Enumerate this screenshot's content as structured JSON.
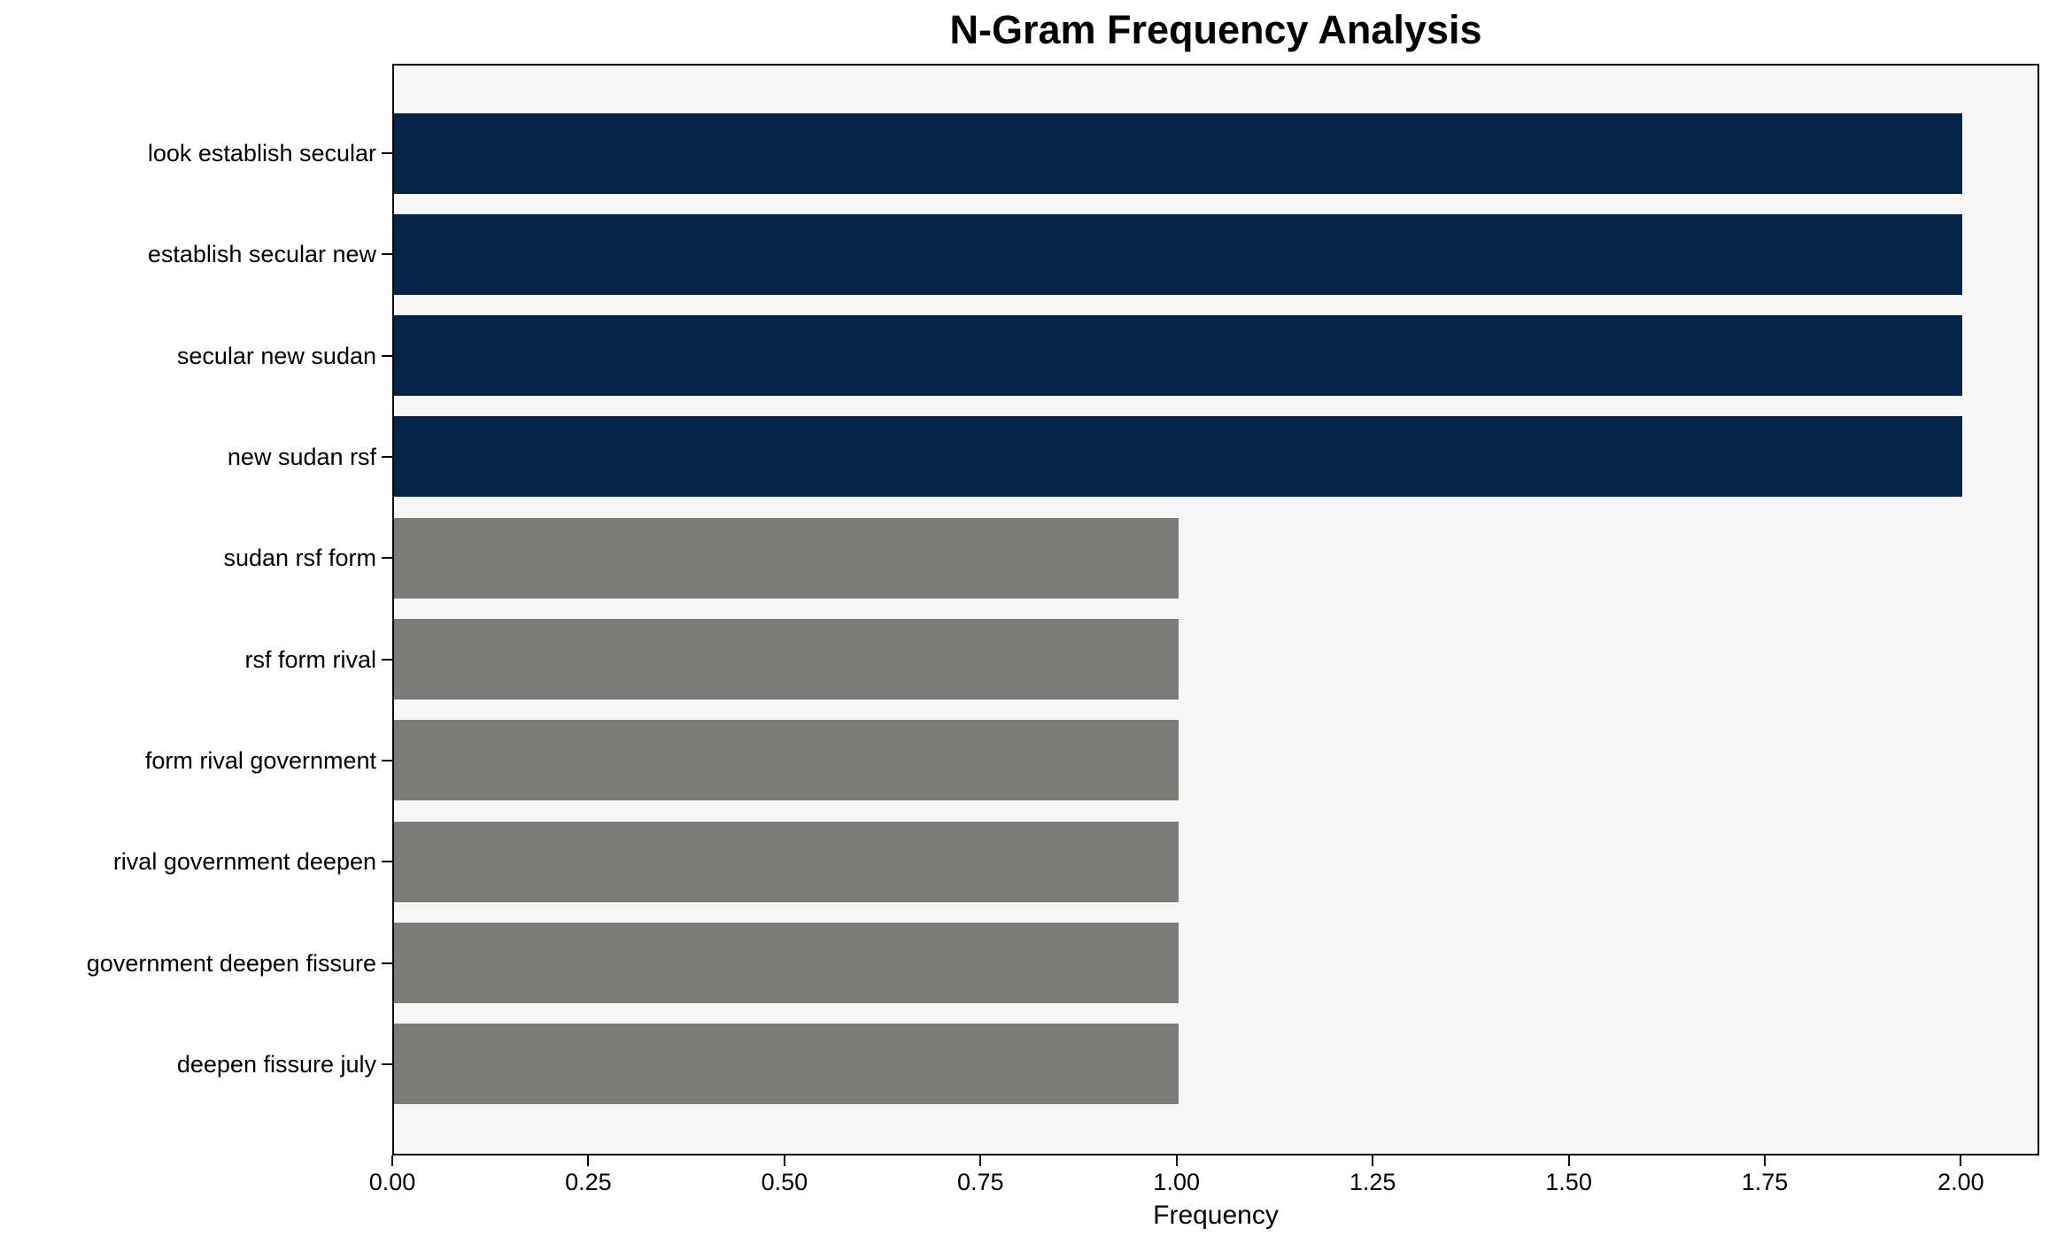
{
  "figure": {
    "background": "#ffffff"
  },
  "chart_data": {
    "type": "bar",
    "orientation": "horizontal",
    "title": "N-Gram Frequency Analysis",
    "xlabel": "Frequency",
    "ylabel": "",
    "categories": [
      "look establish secular",
      "establish secular new",
      "secular new sudan",
      "new sudan rsf",
      "sudan rsf form",
      "rsf form rival",
      "form rival government",
      "rival government deepen",
      "government deepen fissure",
      "deepen fissure july"
    ],
    "values": [
      2,
      2,
      2,
      2,
      1,
      1,
      1,
      1,
      1,
      1
    ],
    "bar_colors": [
      "#032349",
      "#032349",
      "#032349",
      "#032349",
      "#7b7b78",
      "#7b7b78",
      "#7b7b78",
      "#7b7b78",
      "#7b7b78",
      "#7b7b78"
    ],
    "colors": {
      "highlight_bar": "#032349",
      "default_bar": "#7b7b78",
      "plot_background": "#f7f7f7",
      "axis": "#000000",
      "text": "#000000"
    },
    "xlim": [
      0,
      2.1
    ],
    "xticks": {
      "values": [
        0.0,
        0.25,
        0.5,
        0.75,
        1.0,
        1.25,
        1.5,
        1.75,
        2.0
      ],
      "labels": [
        "0.00",
        "0.25",
        "0.50",
        "0.75",
        "1.00",
        "1.25",
        "1.50",
        "1.75",
        "2.00"
      ]
    },
    "grid": false,
    "legend": null
  }
}
